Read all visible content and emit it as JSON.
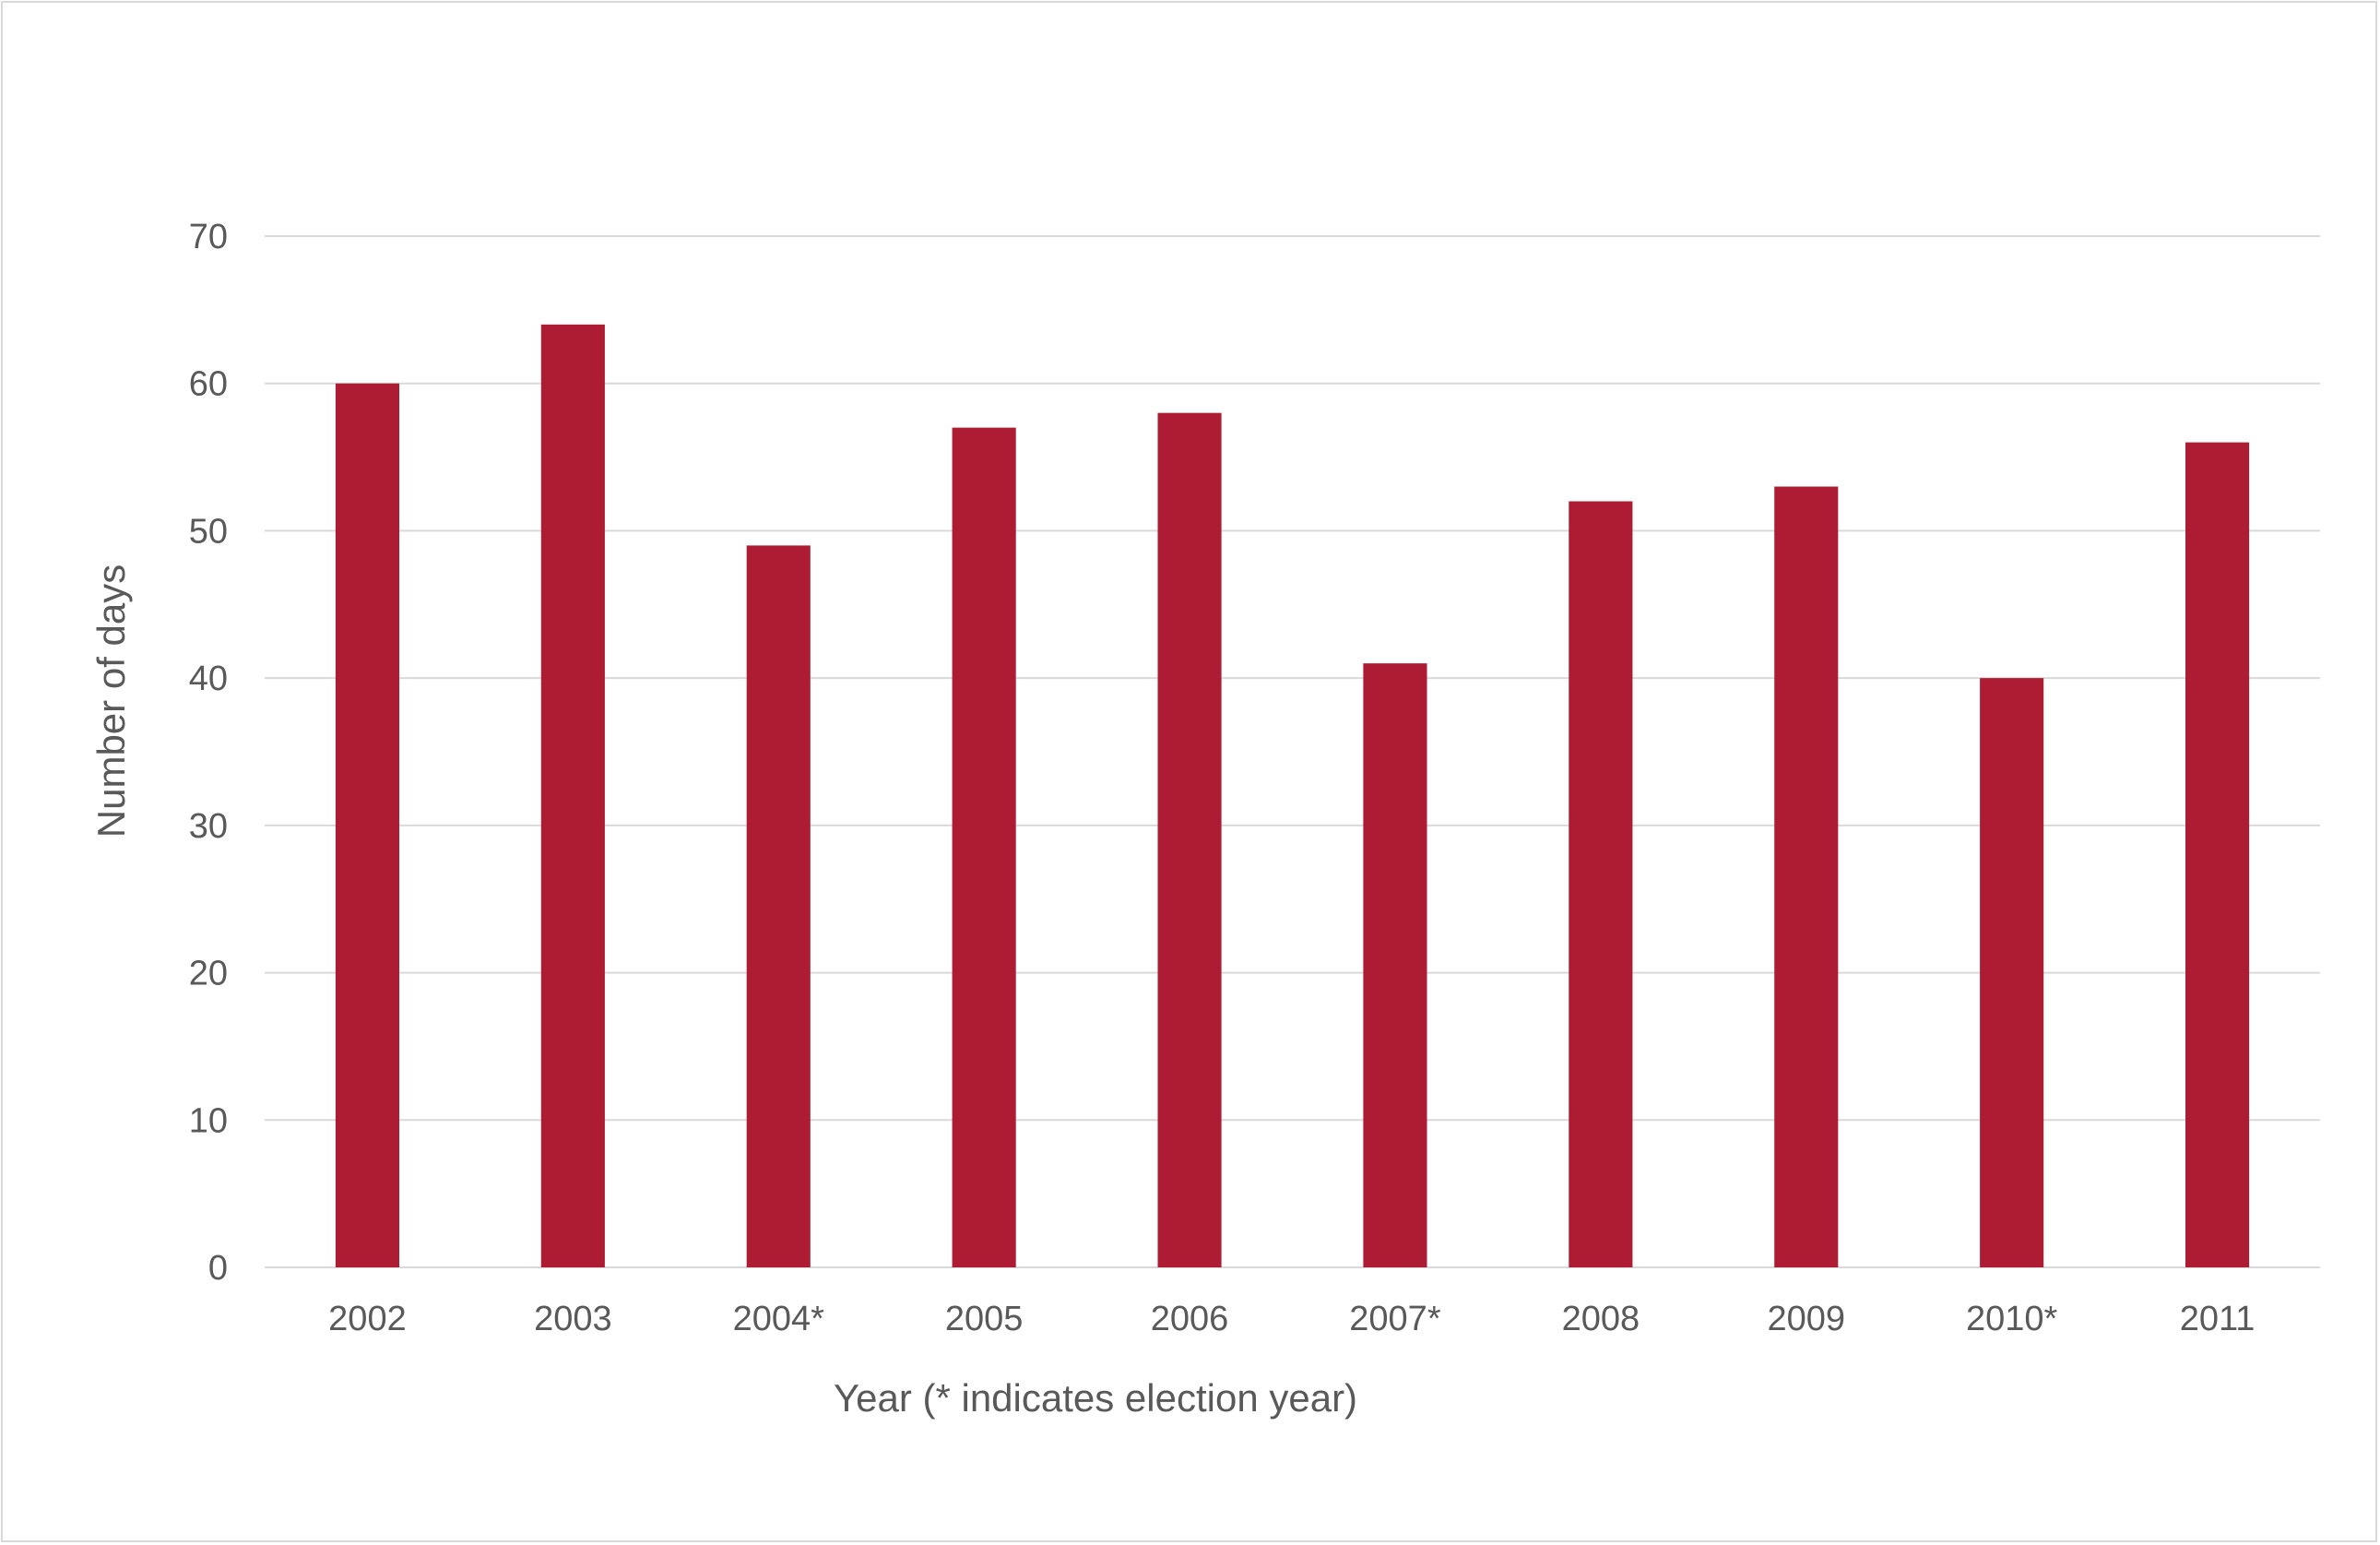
{
  "chart_data": {
    "type": "bar",
    "title": "",
    "xlabel": "Year (* indicates election year)",
    "ylabel": "Number of days",
    "categories": [
      "2002",
      "2003",
      "2004*",
      "2005",
      "2006",
      "2007*",
      "2008",
      "2009",
      "2010*",
      "2011"
    ],
    "values": [
      60,
      64,
      49,
      57,
      58,
      41,
      52,
      53,
      40,
      56
    ],
    "ylim": [
      0,
      70
    ],
    "yticks": [
      0,
      10,
      20,
      30,
      40,
      50,
      60,
      70
    ],
    "grid": true,
    "legend": "none",
    "colors": {
      "bar": "#ae1c34",
      "grid": "#d9d9d9",
      "text": "#595959",
      "frame": "#d9d9d9"
    }
  }
}
